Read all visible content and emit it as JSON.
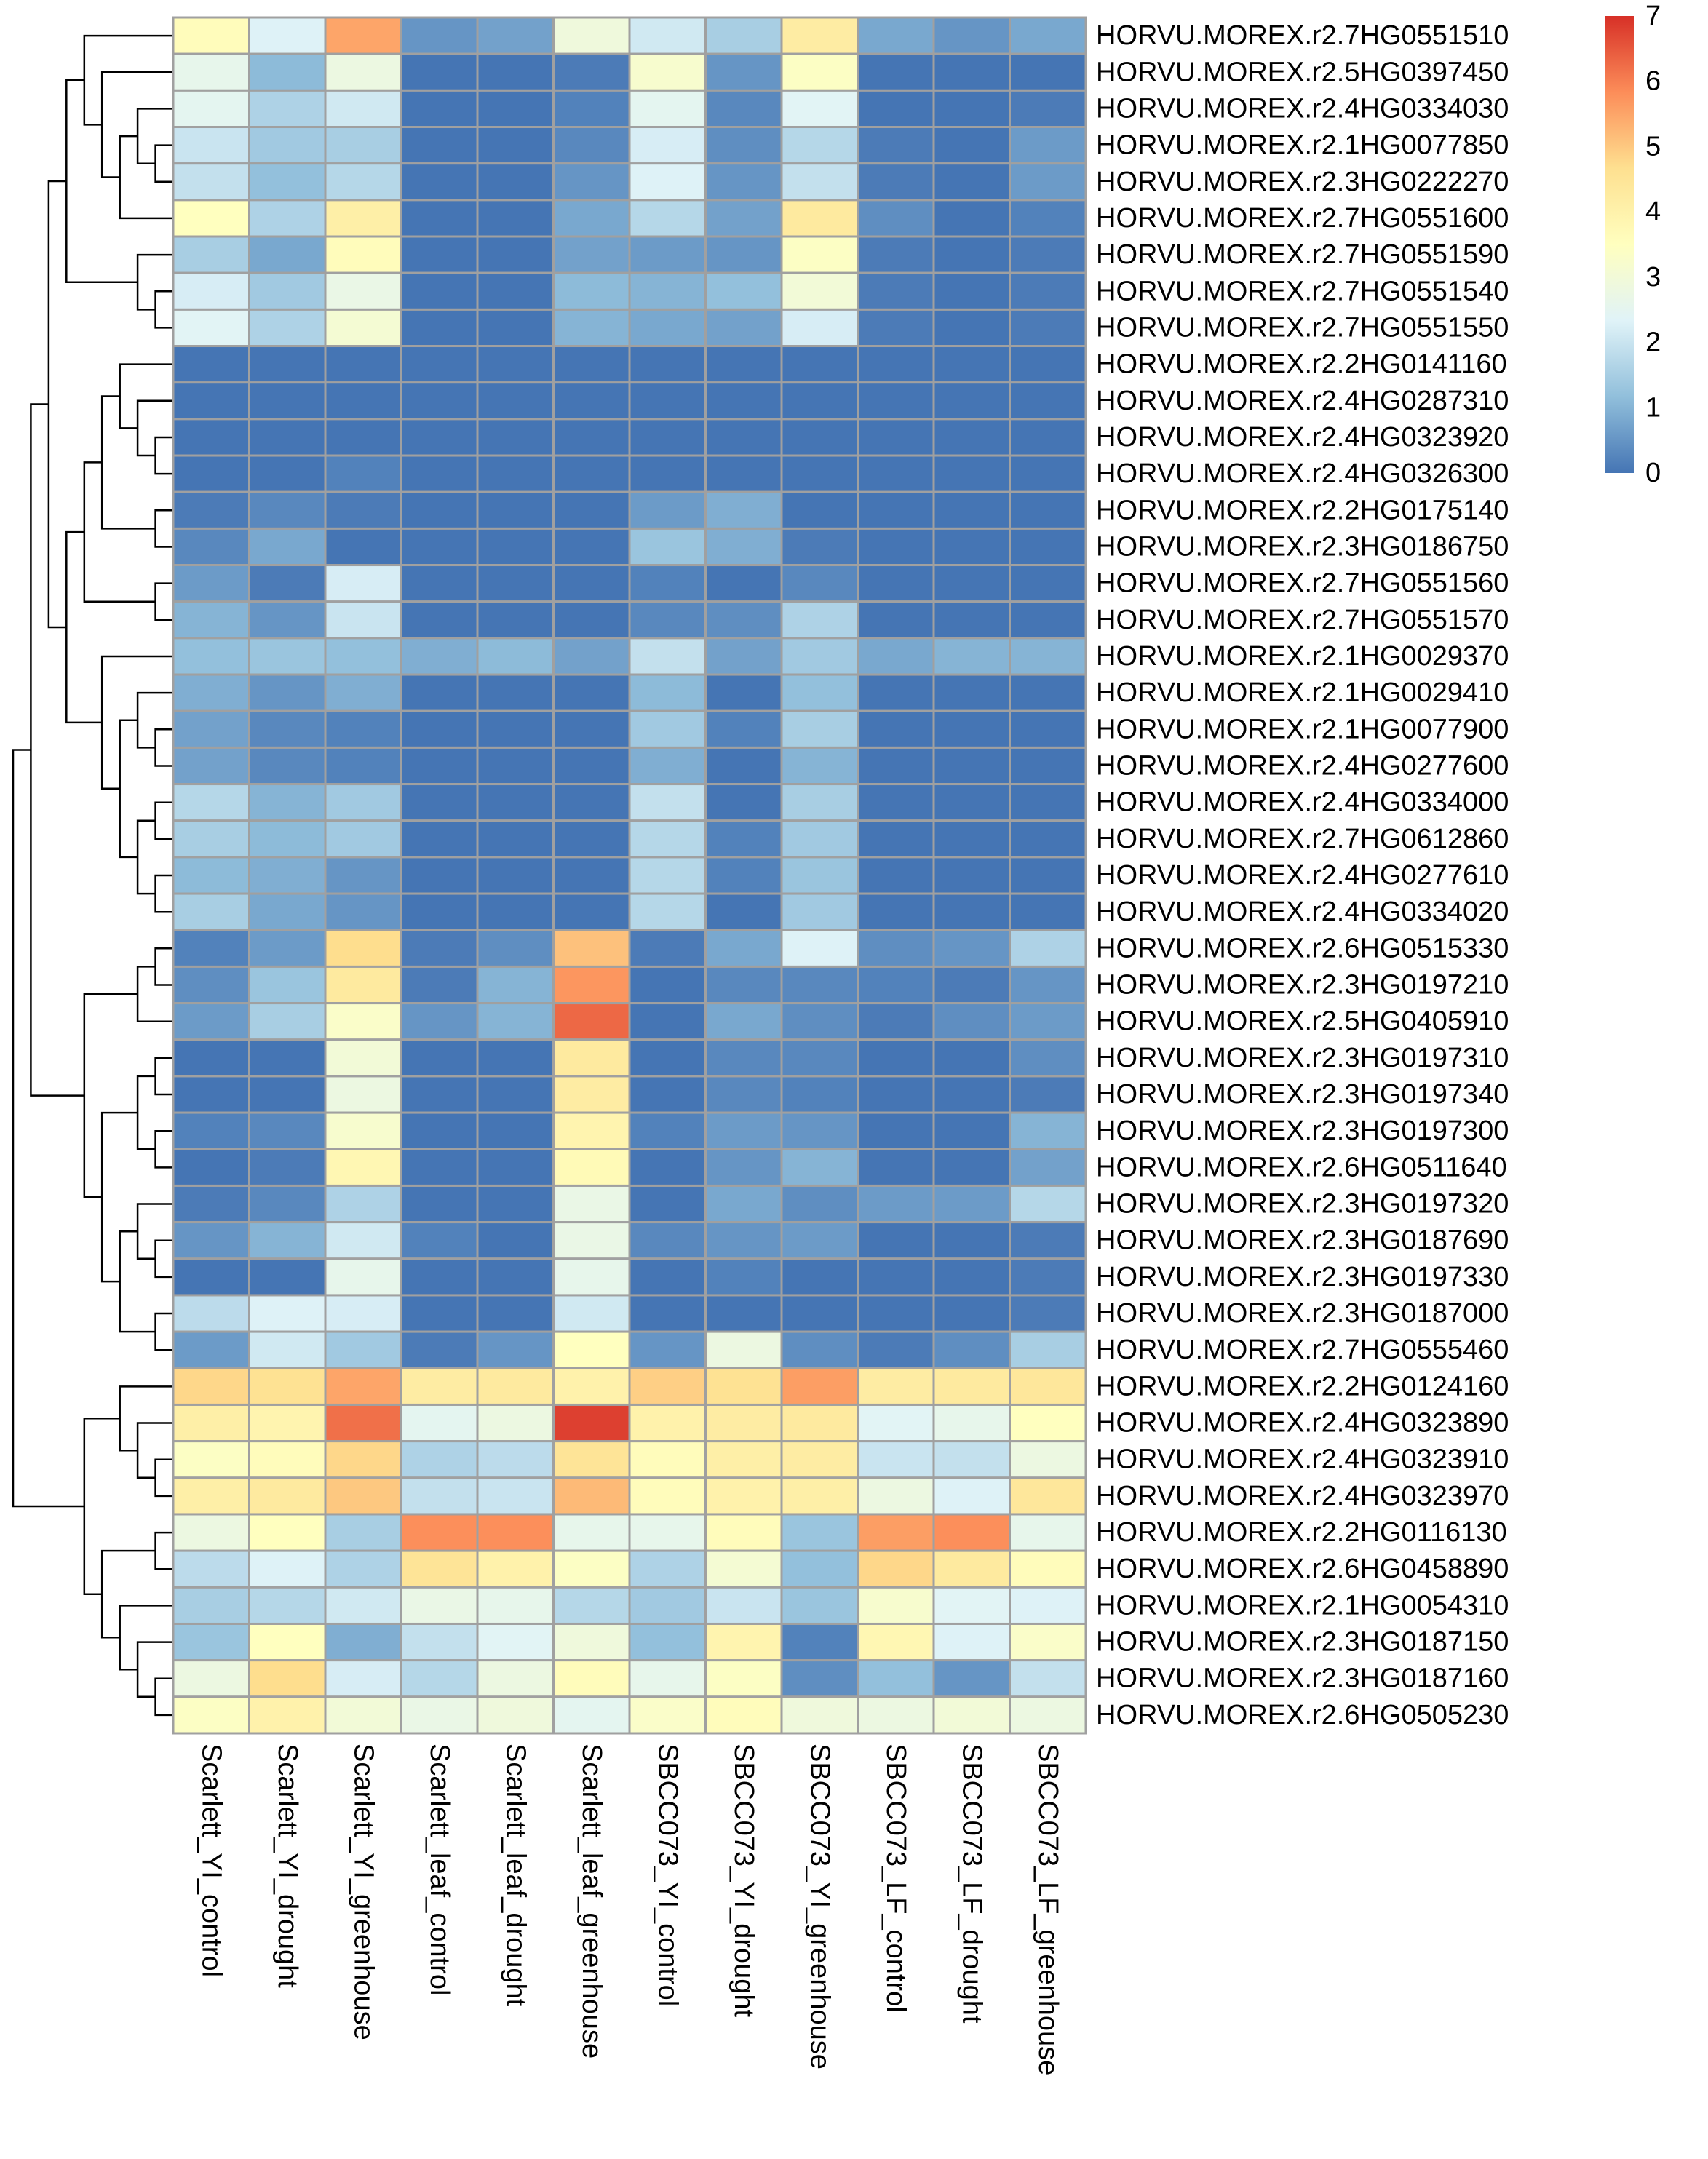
{
  "chart_data": {
    "type": "heatmap",
    "title": "",
    "columns": [
      "Scarlett_YI_control",
      "Scarlett_YI_drought",
      "Scarlett_YI_greenhouse",
      "Scarlett_leaf_control",
      "Scarlett_leaf_drought",
      "Scarlett_leaf_greenhouse",
      "SBCC073_YI_control",
      "SBCC073_YI_drought",
      "SBCC073_YI_greenhouse",
      "SBCC073_LF_control",
      "SBCC073_LF_drought",
      "SBCC073_LF_greenhouse"
    ],
    "rows": [
      {
        "gene": "HORVU.MOREX.r2.7HG0551510",
        "values": [
          3.6,
          2.3,
          5.5,
          0.5,
          0.7,
          2.9,
          2.1,
          1.5,
          4.2,
          0.8,
          0.5,
          0.8
        ]
      },
      {
        "gene": "HORVU.MOREX.r2.5HG0397450",
        "values": [
          2.6,
          1.1,
          2.8,
          0.0,
          0.0,
          0.1,
          3.2,
          0.5,
          3.4,
          0.0,
          0.0,
          0.0
        ]
      },
      {
        "gene": "HORVU.MOREX.r2.4HG0334030",
        "values": [
          2.5,
          1.6,
          2.1,
          0.0,
          0.0,
          0.2,
          2.5,
          0.3,
          2.4,
          0.0,
          0.0,
          0.1
        ]
      },
      {
        "gene": "HORVU.MOREX.r2.1HG0077850",
        "values": [
          2.0,
          1.4,
          1.5,
          0.0,
          0.0,
          0.3,
          2.2,
          0.4,
          1.7,
          0.1,
          0.0,
          0.6
        ]
      },
      {
        "gene": "HORVU.MOREX.r2.3HG0222270",
        "values": [
          1.9,
          1.2,
          1.7,
          0.0,
          0.0,
          0.5,
          2.3,
          0.5,
          1.9,
          0.1,
          0.0,
          0.6
        ]
      },
      {
        "gene": "HORVU.MOREX.r2.7HG0551600",
        "values": [
          3.5,
          1.6,
          4.1,
          0.0,
          0.0,
          0.8,
          1.7,
          0.7,
          4.3,
          0.4,
          0.0,
          0.2
        ]
      },
      {
        "gene": "HORVU.MOREX.r2.7HG0551590",
        "values": [
          1.5,
          0.8,
          3.6,
          0.0,
          0.0,
          0.7,
          0.6,
          0.5,
          3.4,
          0.1,
          0.0,
          0.1
        ]
      },
      {
        "gene": "HORVU.MOREX.r2.7HG0551540",
        "values": [
          2.2,
          1.4,
          2.7,
          0.0,
          0.0,
          1.1,
          1.0,
          1.2,
          3.0,
          0.1,
          0.0,
          0.1
        ]
      },
      {
        "gene": "HORVU.MOREX.r2.7HG0551550",
        "values": [
          2.4,
          1.6,
          3.1,
          0.0,
          0.0,
          1.0,
          0.8,
          0.7,
          2.2,
          0.1,
          0.0,
          0.1
        ]
      },
      {
        "gene": "HORVU.MOREX.r2.2HG0141160",
        "values": [
          0.0,
          0.0,
          0.0,
          0.0,
          0.0,
          0.0,
          0.0,
          0.0,
          0.0,
          0.0,
          0.0,
          0.0
        ]
      },
      {
        "gene": "HORVU.MOREX.r2.4HG0287310",
        "values": [
          0.0,
          0.0,
          0.0,
          0.0,
          0.0,
          0.0,
          0.0,
          0.0,
          0.0,
          0.0,
          0.0,
          0.0
        ]
      },
      {
        "gene": "HORVU.MOREX.r2.4HG0323920",
        "values": [
          0.0,
          0.0,
          0.0,
          0.0,
          0.0,
          0.0,
          0.0,
          0.0,
          0.0,
          0.0,
          0.0,
          0.0
        ]
      },
      {
        "gene": "HORVU.MOREX.r2.4HG0326300",
        "values": [
          0.0,
          0.0,
          0.2,
          0.0,
          0.0,
          0.0,
          0.0,
          0.0,
          0.0,
          0.0,
          0.0,
          0.0
        ]
      },
      {
        "gene": "HORVU.MOREX.r2.2HG0175140",
        "values": [
          0.1,
          0.3,
          0.1,
          0.0,
          0.0,
          0.0,
          0.6,
          0.9,
          0.0,
          0.0,
          0.0,
          0.0
        ]
      },
      {
        "gene": "HORVU.MOREX.r2.3HG0186750",
        "values": [
          0.3,
          0.8,
          0.0,
          0.0,
          0.0,
          0.0,
          1.3,
          0.9,
          0.1,
          0.0,
          0.0,
          0.0
        ]
      },
      {
        "gene": "HORVU.MOREX.r2.7HG0551560",
        "values": [
          0.6,
          0.1,
          2.2,
          0.0,
          0.0,
          0.0,
          0.2,
          0.0,
          0.3,
          0.0,
          0.0,
          0.0
        ]
      },
      {
        "gene": "HORVU.MOREX.r2.7HG0551570",
        "values": [
          1.0,
          0.5,
          2.0,
          0.0,
          0.0,
          0.0,
          0.3,
          0.4,
          1.6,
          0.0,
          0.0,
          0.0
        ]
      },
      {
        "gene": "HORVU.MOREX.r2.1HG0029370",
        "values": [
          1.2,
          1.3,
          1.2,
          0.9,
          1.1,
          0.7,
          1.9,
          0.7,
          1.4,
          0.8,
          1.0,
          1.0
        ]
      },
      {
        "gene": "HORVU.MOREX.r2.1HG0029410",
        "values": [
          0.9,
          0.5,
          0.9,
          0.0,
          0.0,
          0.0,
          1.1,
          0.0,
          1.2,
          0.0,
          0.0,
          0.0
        ]
      },
      {
        "gene": "HORVU.MOREX.r2.1HG0077900",
        "values": [
          0.7,
          0.3,
          0.2,
          0.0,
          0.0,
          0.0,
          1.4,
          0.2,
          1.5,
          0.0,
          0.0,
          0.0
        ]
      },
      {
        "gene": "HORVU.MOREX.r2.4HG0277600",
        "values": [
          0.7,
          0.3,
          0.2,
          0.0,
          0.0,
          0.0,
          0.9,
          0.0,
          1.0,
          0.0,
          0.0,
          0.0
        ]
      },
      {
        "gene": "HORVU.MOREX.r2.4HG0334000",
        "values": [
          1.7,
          1.0,
          1.4,
          0.0,
          0.0,
          0.0,
          1.9,
          0.0,
          1.5,
          0.0,
          0.0,
          0.0
        ]
      },
      {
        "gene": "HORVU.MOREX.r2.7HG0612860",
        "values": [
          1.5,
          1.1,
          1.4,
          0.0,
          0.0,
          0.0,
          1.7,
          0.2,
          1.4,
          0.0,
          0.0,
          0.0
        ]
      },
      {
        "gene": "HORVU.MOREX.r2.4HG0277610",
        "values": [
          1.1,
          0.9,
          0.5,
          0.0,
          0.0,
          0.0,
          1.7,
          0.2,
          1.3,
          0.0,
          0.0,
          0.0
        ]
      },
      {
        "gene": "HORVU.MOREX.r2.4HG0334020",
        "values": [
          1.5,
          0.8,
          0.5,
          0.0,
          0.0,
          0.0,
          1.7,
          0.0,
          1.4,
          0.0,
          0.0,
          0.0
        ]
      },
      {
        "gene": "HORVU.MOREX.r2.6HG0515330",
        "values": [
          0.2,
          0.6,
          4.7,
          0.1,
          0.4,
          5.1,
          0.1,
          0.8,
          2.3,
          0.4,
          0.5,
          1.6
        ]
      },
      {
        "gene": "HORVU.MOREX.r2.3HG0197210",
        "values": [
          0.4,
          1.3,
          4.3,
          0.1,
          1.0,
          5.7,
          0.0,
          0.3,
          0.3,
          0.2,
          0.1,
          0.5
        ]
      },
      {
        "gene": "HORVU.MOREX.r2.5HG0405910",
        "values": [
          0.6,
          1.5,
          3.3,
          0.5,
          1.0,
          6.3,
          0.0,
          0.8,
          0.4,
          0.1,
          0.4,
          0.6
        ]
      },
      {
        "gene": "HORVU.MOREX.r2.3HG0197310",
        "values": [
          0.0,
          0.0,
          3.0,
          0.0,
          0.0,
          4.3,
          0.0,
          0.3,
          0.3,
          0.0,
          0.0,
          0.4
        ]
      },
      {
        "gene": "HORVU.MOREX.r2.3HG0197340",
        "values": [
          0.0,
          0.0,
          2.8,
          0.0,
          0.0,
          4.2,
          0.0,
          0.3,
          0.2,
          0.0,
          0.0,
          0.1
        ]
      },
      {
        "gene": "HORVU.MOREX.r2.3HG0197300",
        "values": [
          0.2,
          0.3,
          3.2,
          0.0,
          0.0,
          3.9,
          0.2,
          0.6,
          0.5,
          0.0,
          0.0,
          1.0
        ]
      },
      {
        "gene": "HORVU.MOREX.r2.6HG0511640",
        "values": [
          0.0,
          0.1,
          3.8,
          0.0,
          0.0,
          3.7,
          0.0,
          0.5,
          1.0,
          0.0,
          0.0,
          0.7
        ]
      },
      {
        "gene": "HORVU.MOREX.r2.3HG0197320",
        "values": [
          0.1,
          0.3,
          1.6,
          0.0,
          0.0,
          2.7,
          0.0,
          0.8,
          0.4,
          0.6,
          0.6,
          1.7
        ]
      },
      {
        "gene": "HORVU.MOREX.r2.3HG0187690",
        "values": [
          0.5,
          1.0,
          2.1,
          0.2,
          0.0,
          2.7,
          0.3,
          0.5,
          0.6,
          0.0,
          0.0,
          0.1
        ]
      },
      {
        "gene": "HORVU.MOREX.r2.3HG0197330",
        "values": [
          0.0,
          0.0,
          2.6,
          0.0,
          0.0,
          2.6,
          0.0,
          0.2,
          0.0,
          0.0,
          0.0,
          0.1
        ]
      },
      {
        "gene": "HORVU.MOREX.r2.3HG0187000",
        "values": [
          1.8,
          2.3,
          2.2,
          0.0,
          0.0,
          2.1,
          0.0,
          0.0,
          0.0,
          0.0,
          0.0,
          0.1
        ]
      },
      {
        "gene": "HORVU.MOREX.r2.7HG0555460",
        "values": [
          0.6,
          2.1,
          1.4,
          0.1,
          0.5,
          3.5,
          0.5,
          2.8,
          0.4,
          0.1,
          0.4,
          1.5
        ]
      },
      {
        "gene": "HORVU.MOREX.r2.2HG0124160",
        "values": [
          4.8,
          4.6,
          5.5,
          4.2,
          4.3,
          4.0,
          4.9,
          4.6,
          5.6,
          4.2,
          4.3,
          4.4
        ]
      },
      {
        "gene": "HORVU.MOREX.r2.4HG0323890",
        "values": [
          4.1,
          3.9,
          6.2,
          2.5,
          2.8,
          6.8,
          4.0,
          4.2,
          4.3,
          2.4,
          2.6,
          3.5
        ]
      },
      {
        "gene": "HORVU.MOREX.r2.4HG0323910",
        "values": [
          3.4,
          3.6,
          4.8,
          1.6,
          1.8,
          4.5,
          3.6,
          4.1,
          4.2,
          2.0,
          1.9,
          2.8
        ]
      },
      {
        "gene": "HORVU.MOREX.r2.4HG0323970",
        "values": [
          4.1,
          4.3,
          5.0,
          1.9,
          2.0,
          5.2,
          3.6,
          4.0,
          4.1,
          2.8,
          2.3,
          4.4
        ]
      },
      {
        "gene": "HORVU.MOREX.r2.2HG0116130",
        "values": [
          2.8,
          3.5,
          1.5,
          5.8,
          5.8,
          2.6,
          2.6,
          3.6,
          1.3,
          5.6,
          5.8,
          2.6
        ]
      },
      {
        "gene": "HORVU.MOREX.r2.6HG0458890",
        "values": [
          1.8,
          2.3,
          1.6,
          4.5,
          4.0,
          3.4,
          1.6,
          3.1,
          1.2,
          4.8,
          4.3,
          3.6
        ]
      },
      {
        "gene": "HORVU.MOREX.r2.1HG0054310",
        "values": [
          1.5,
          1.7,
          2.1,
          2.7,
          2.6,
          1.7,
          1.4,
          2.0,
          1.3,
          3.2,
          2.4,
          2.3
        ]
      },
      {
        "gene": "HORVU.MOREX.r2.3HG0187150",
        "values": [
          1.3,
          3.5,
          0.9,
          1.9,
          2.4,
          2.9,
          1.2,
          3.9,
          0.2,
          3.8,
          2.3,
          3.3
        ]
      },
      {
        "gene": "HORVU.MOREX.r2.3HG0187160",
        "values": [
          2.8,
          4.7,
          2.2,
          1.7,
          2.8,
          3.6,
          2.6,
          3.4,
          0.4,
          1.2,
          0.5,
          1.9
        ]
      },
      {
        "gene": "HORVU.MOREX.r2.6HG0505230",
        "values": [
          3.4,
          4.0,
          3.0,
          2.7,
          2.9,
          2.5,
          3.3,
          3.6,
          2.9,
          2.8,
          3.0,
          2.8
        ]
      }
    ],
    "color_scale": {
      "min": 0,
      "max": 7,
      "ticks": [
        0,
        1,
        2,
        3,
        4,
        5,
        6,
        7
      ],
      "colors": [
        "#4575B4",
        "#91BFDB",
        "#E0F3F8",
        "#FFFFBF",
        "#FEE090",
        "#FC8D59",
        "#D73027"
      ]
    },
    "grid": true,
    "cell_border_color": "#A0A0A0",
    "legend_position": "top-right",
    "row_dendrogram": "left",
    "row_dendrogram_tree": [
      [
        [
          [
            [
              0,
              [
                1,
                [
                  [
                    2,
                    [
                      3,
                      4
                    ]
                  ],
                  5
                ]
              ]
            ],
            [
              6,
              [
                7,
                8
              ]
            ]
          ],
          [
            [
              [
                [
                  9,
                  [
                    10,
                    [
                      11,
                      12
                    ]
                  ]
                ],
                [
                  13,
                  14
                ]
              ],
              [
                15,
                16
              ]
            ],
            [
              17,
              [
                [
                  18,
                  [
                    19,
                    20
                  ]
                ],
                [
                  [
                    21,
                    22
                  ],
                  [
                    23,
                    24
                  ]
                ]
              ]
            ]
          ]
        ],
        [
          [
            [
              25,
              26
            ],
            27
          ],
          [
            [
              [
                28,
                29
              ],
              [
                30,
                31
              ]
            ],
            [
              [
                32,
                [
                  33,
                  34
                ]
              ],
              [
                35,
                36
              ]
            ]
          ]
        ]
      ],
      [
        [
          37,
          [
            38,
            [
              39,
              40
            ]
          ]
        ],
        [
          [
            41,
            42
          ],
          [
            43,
            [
              44,
              [
                45,
                46
              ]
            ]
          ]
        ]
      ]
    ]
  }
}
